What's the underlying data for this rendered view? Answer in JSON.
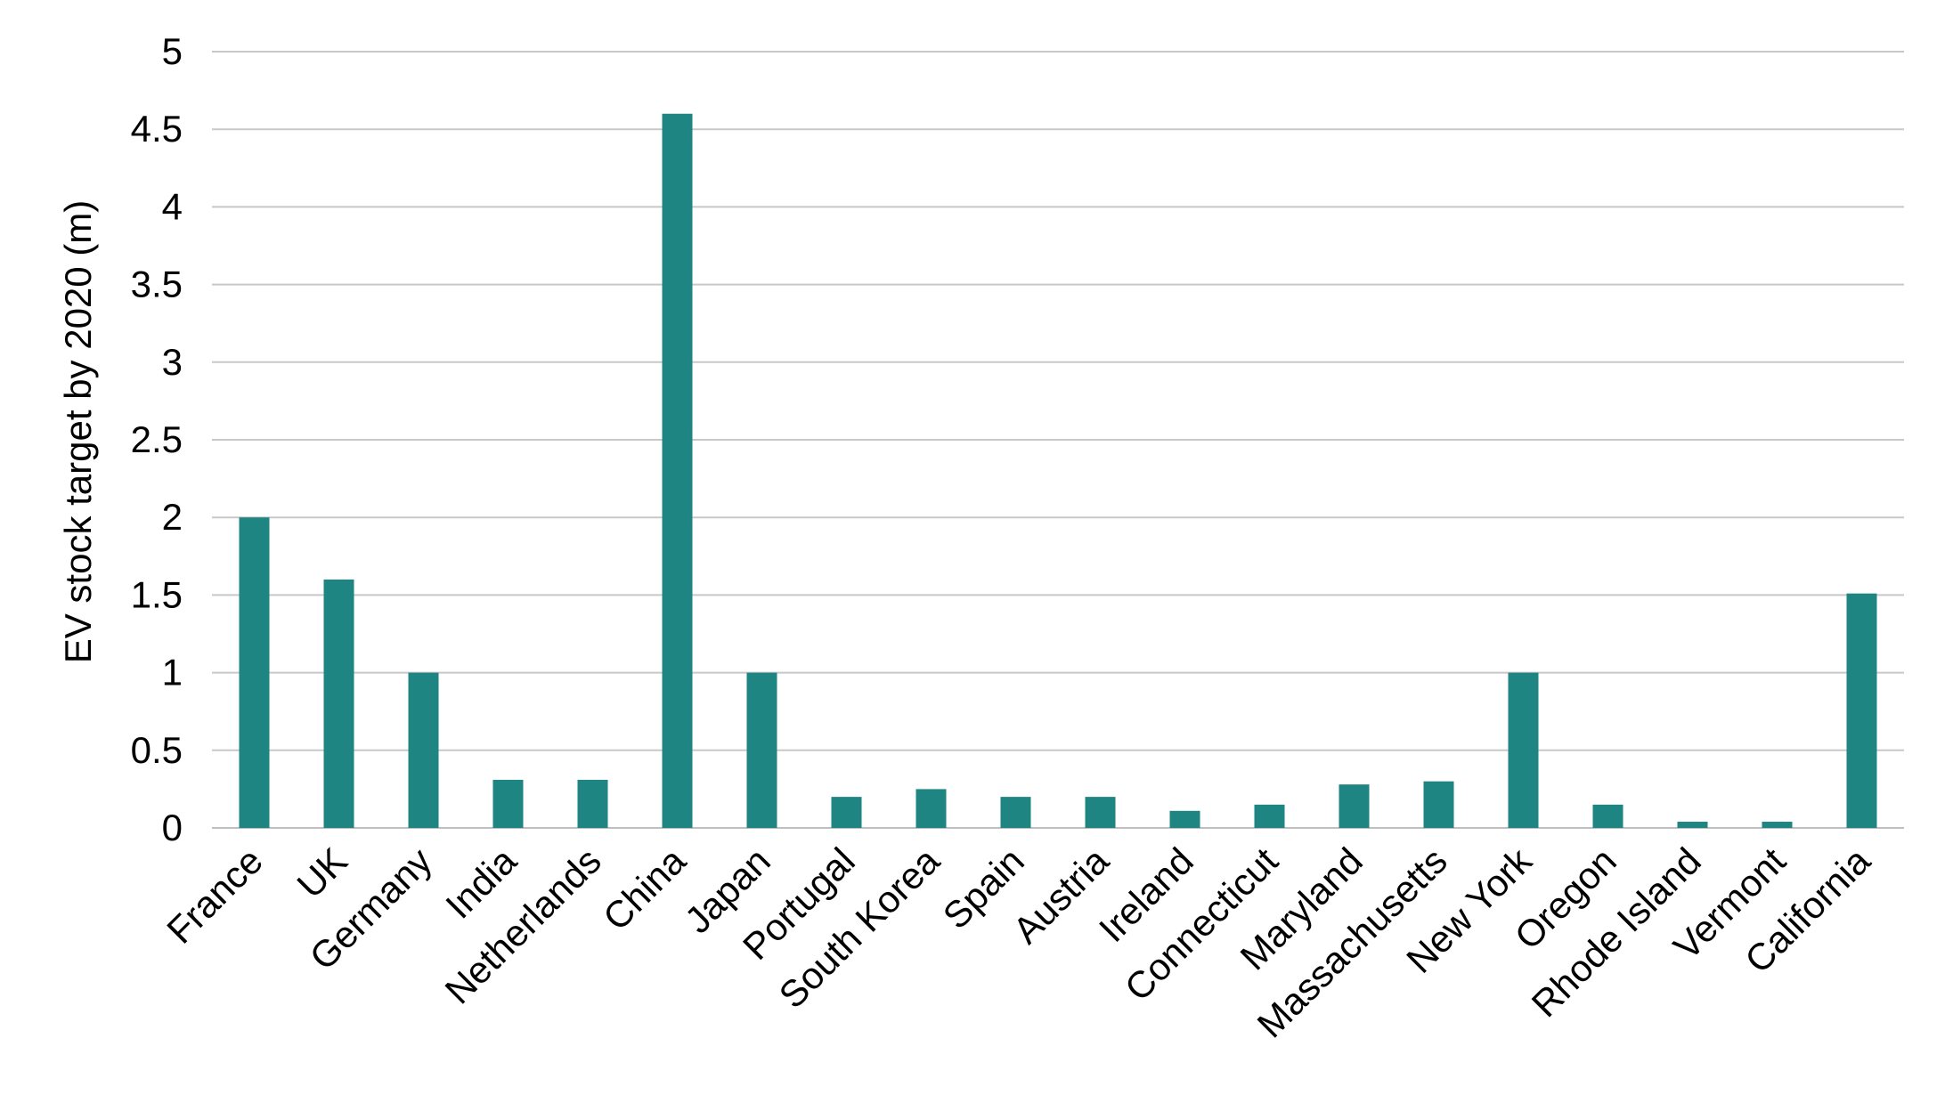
{
  "chart_data": {
    "type": "bar",
    "title": "",
    "xlabel": "",
    "ylabel": "EV stock target by 2020 (m)",
    "ylim": [
      0,
      5
    ],
    "yticks": [
      "0",
      "0.5",
      "1",
      "1.5",
      "2",
      "2.5",
      "3",
      "3.5",
      "4",
      "4.5",
      "5"
    ],
    "ytick_values": [
      0,
      0.5,
      1,
      1.5,
      2,
      2.5,
      3,
      3.5,
      4,
      4.5,
      5
    ],
    "grid": true,
    "legend": "none",
    "bar_color": "#1e8582",
    "categories": [
      "France",
      "UK",
      "Germany",
      "India",
      "Netherlands",
      "China",
      "Japan",
      "Portugal",
      "South Korea",
      "Spain",
      "Austria",
      "Ireland",
      "Connecticut",
      "Maryland",
      "Massachusetts",
      "New York",
      "Oregon",
      "Rhode Island",
      "Vermont",
      "California"
    ],
    "values": [
      2,
      1.6,
      1,
      0.31,
      0.31,
      4.6,
      1,
      0.2,
      0.25,
      0.2,
      0.2,
      0.11,
      0.15,
      0.28,
      0.3,
      1,
      0.15,
      0.04,
      0.04,
      1.51
    ]
  }
}
